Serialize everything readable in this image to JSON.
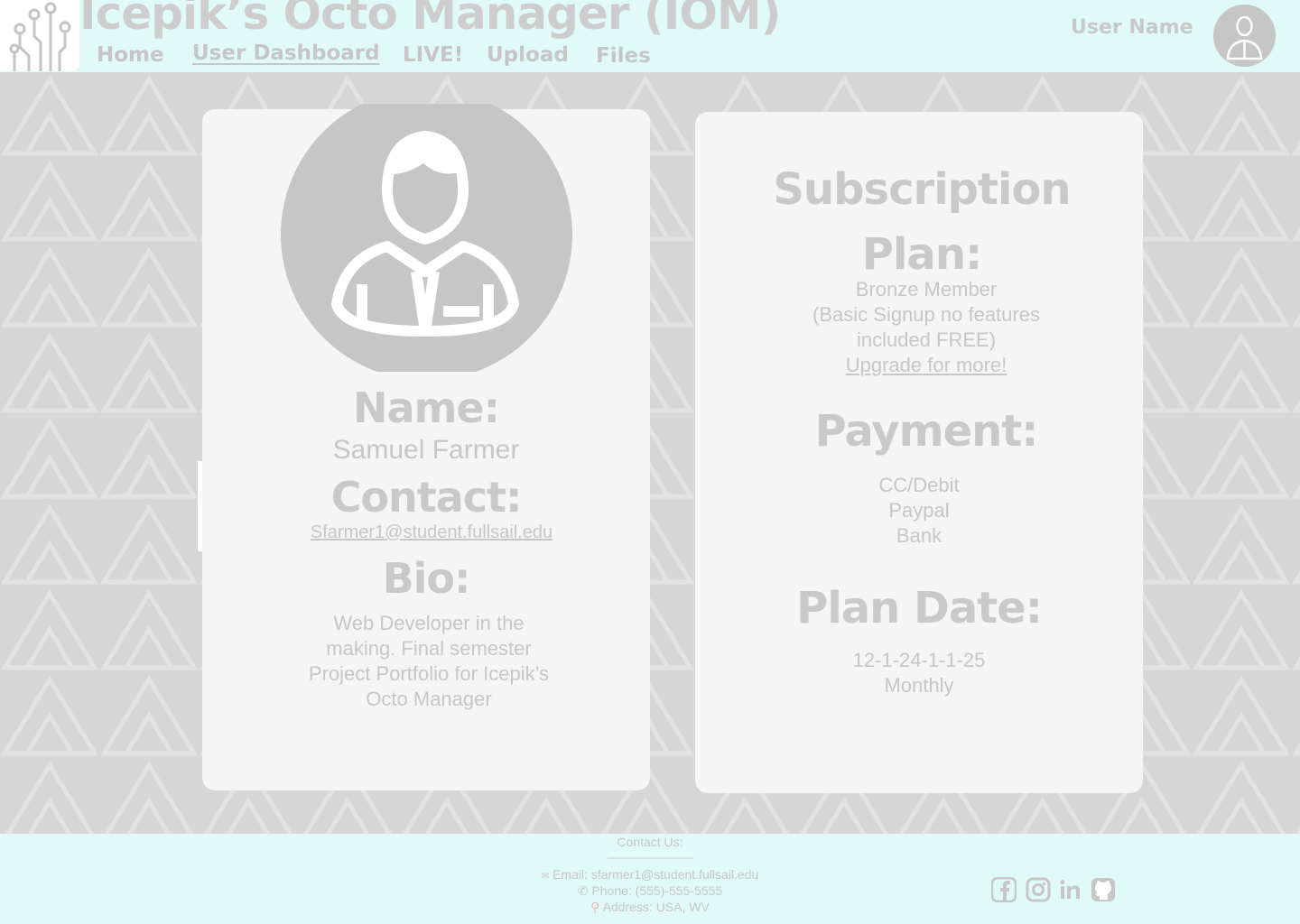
{
  "header": {
    "title": "Icepik’s Octo Manager (IOM)",
    "user_name": "User Name",
    "logo_icon": "circuit-icon",
    "nav": [
      {
        "label": "Home",
        "active": false
      },
      {
        "label": "User Dashboard",
        "active": true
      },
      {
        "label": "LIVE!",
        "active": false
      },
      {
        "label": "Upload",
        "active": false
      },
      {
        "label": "Files",
        "active": false
      }
    ]
  },
  "profile": {
    "avatar_icon": "user-avatar-icon",
    "name_heading": "Name:",
    "name": "Samuel Farmer",
    "contact_heading": "Contact:",
    "contact_email": "Sfarmer1@student.fullsail.edu",
    "bio_heading": "Bio:",
    "bio_lines": [
      "Web Developer in the",
      "making. Final semester",
      "Project Portfolio for Icepik’s",
      "Octo Manager"
    ]
  },
  "subscription": {
    "heading_line1": "Subscription",
    "heading_line2": "Plan:",
    "plan_lines": [
      "Bronze Member",
      "(Basic Signup no features",
      "included FREE)"
    ],
    "upgrade_link": "Upgrade for more!",
    "payment_heading": "Payment:",
    "payment_methods": [
      "CC/Debit",
      "Paypal",
      "Bank"
    ],
    "plan_date_heading": "Plan Date:",
    "plan_date": "12-1-24-1-1-25",
    "plan_cycle": "Monthly"
  },
  "footer": {
    "contact_heading": "Contact Us:",
    "divider": "------------------------------------",
    "email": "Email: sfarmer1@student.fullsail.edu",
    "phone": "Phone: (555)-555-5555",
    "address": "Address: USA, WV",
    "social_icons": [
      "facebook-icon",
      "instagram-icon",
      "linkedin-icon",
      "github-icon"
    ]
  },
  "colors": {
    "header_bg": "#e0fbf7",
    "page_bg": "#d6d6d6",
    "card_bg": "#f5f5f5",
    "text_gray": "#c9c9c9"
  }
}
